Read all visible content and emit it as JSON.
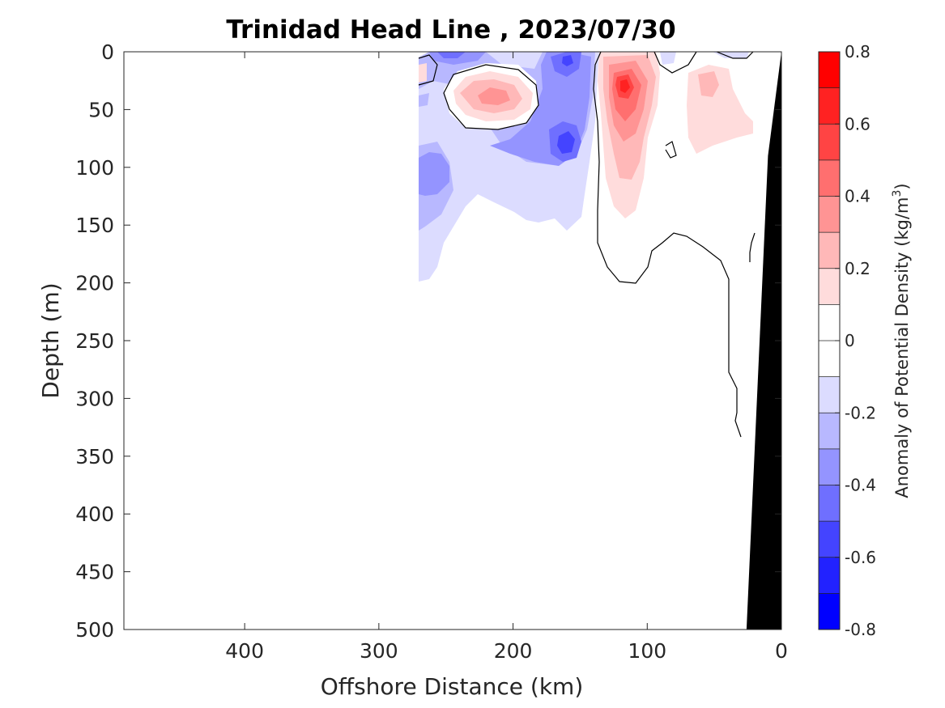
{
  "chart_data": {
    "type": "heatmap",
    "title": "Trinidad Head Line , 2023/07/30",
    "xlabel": "Offshore Distance (km)",
    "ylabel": "Depth (m)",
    "xlim": [
      490,
      0
    ],
    "ylim": [
      500,
      0
    ],
    "x_ticks": [
      "400",
      "300",
      "200",
      "100",
      "0"
    ],
    "x_tick_values": [
      400,
      300,
      200,
      100,
      0
    ],
    "y_ticks": [
      "0",
      "50",
      "100",
      "150",
      "200",
      "250",
      "300",
      "350",
      "400",
      "450",
      "500"
    ],
    "y_tick_values": [
      0,
      50,
      100,
      150,
      200,
      250,
      300,
      350,
      400,
      450,
      500
    ],
    "colorbar": {
      "label": "Anomaly of Potential Density (kg/m3)",
      "label_text": "Anomaly of Potential Density (kg/m",
      "label_superscript": "3",
      "label_suffix": ")",
      "range": [
        -0.8,
        0.8
      ],
      "ticks": [
        "0.8",
        "0.6",
        "0.4",
        "0.2",
        "0",
        "-0.2",
        "-0.4",
        "-0.6",
        "-0.8"
      ],
      "tick_values": [
        0.8,
        0.6,
        0.4,
        0.2,
        0,
        -0.2,
        -0.4,
        -0.6,
        -0.8
      ],
      "levels": [
        0.8,
        0.7,
        0.6,
        0.5,
        0.4,
        0.3,
        0.2,
        0.1,
        0.0,
        -0.1,
        -0.2,
        -0.3,
        -0.4,
        -0.5,
        -0.6,
        -0.7,
        -0.8
      ],
      "colors": [
        "#ff0000",
        "#ff2222",
        "#ff4444",
        "#ff6f6f",
        "#ff9494",
        "#ffb8b8",
        "#ffdcdc",
        "#ffffff",
        "#ffffff",
        "#dcdcff",
        "#b8b8ff",
        "#9494ff",
        "#6f6fff",
        "#4444ff",
        "#2222ff",
        "#0000ff"
      ]
    },
    "anomaly_fields": [
      {
        "name": "surface-negative-offshore",
        "x": [
          270,
          155
        ],
        "depth": [
          0,
          200
        ],
        "value": -0.2
      },
      {
        "name": "deep-negative-core",
        "x": [
          165,
          150
        ],
        "depth": [
          60,
          100
        ],
        "value": -0.5
      },
      {
        "name": "shallow-negative-core",
        "x": [
          165,
          150
        ],
        "depth": [
          0,
          20
        ],
        "value": -0.4
      },
      {
        "name": "offshore-negative-core",
        "x": [
          260,
          240
        ],
        "depth": [
          90,
          115
        ],
        "value": -0.3
      },
      {
        "name": "subsurface-positive-offshore",
        "x": [
          250,
          190
        ],
        "depth": [
          25,
          60
        ],
        "value": 0.2
      },
      {
        "name": "nearshore-positive-core",
        "x": [
          140,
          95
        ],
        "depth": [
          0,
          145
        ],
        "value": 0.5
      },
      {
        "name": "coastal-positive",
        "x": [
          80,
          30
        ],
        "depth": [
          10,
          90
        ],
        "value": 0.1
      }
    ],
    "bottom_topography": {
      "x": [
        26,
        10,
        0
      ],
      "depth": [
        500,
        90,
        0
      ]
    },
    "grid": false,
    "legend": "colorbar-right"
  }
}
